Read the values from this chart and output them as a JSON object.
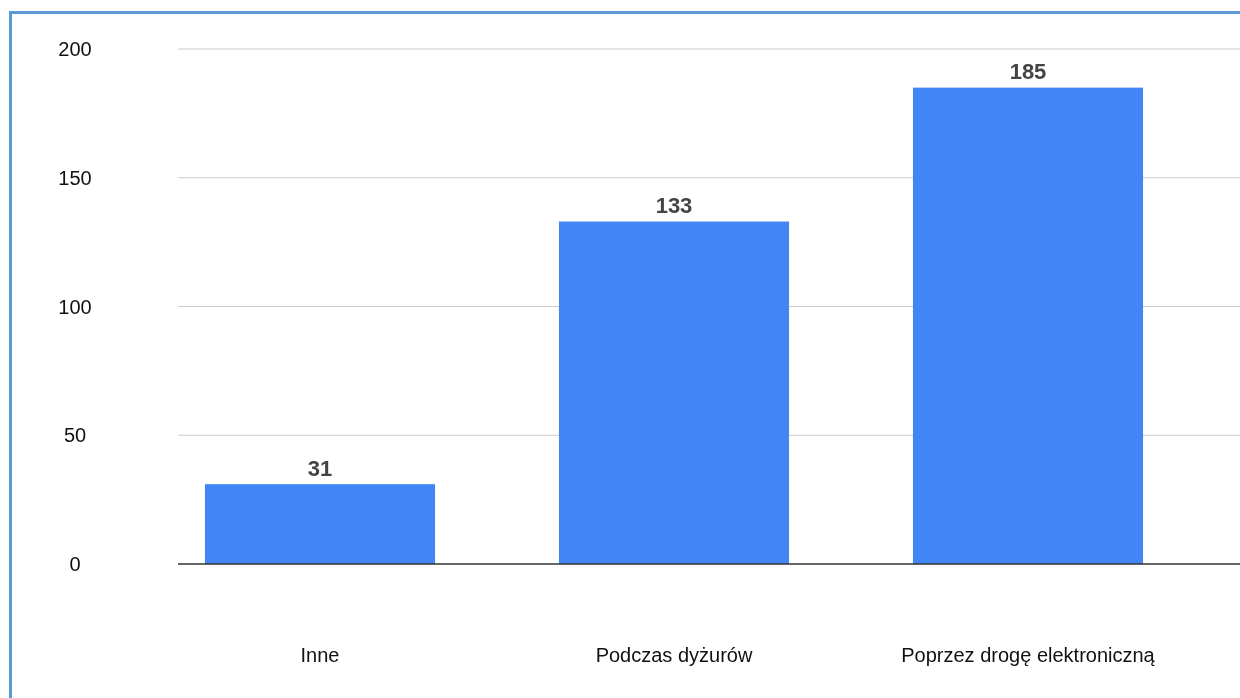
{
  "chart_data": {
    "type": "bar",
    "categories": [
      "Inne",
      "Podczas dyżurów",
      "Poprzez drogę elektroniczną"
    ],
    "values": [
      31,
      133,
      185
    ],
    "color": "#4285f4",
    "ylim": [
      0,
      200
    ],
    "yticks": [
      0,
      50,
      100,
      150,
      200
    ],
    "grid": "y",
    "data_labels": true
  }
}
